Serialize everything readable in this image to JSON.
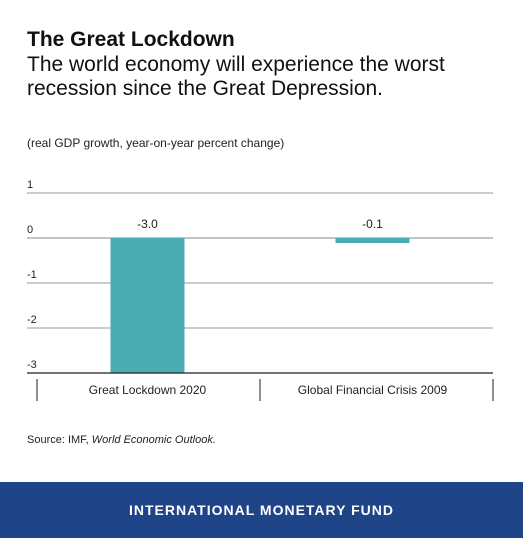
{
  "header": {
    "title": "The Great Lockdown",
    "subtitle": "The world economy will experience the worst recession since the Great Depression."
  },
  "chart_data": {
    "type": "bar",
    "title": "The Great Lockdown",
    "subtitle": "The world economy will experience the worst recession since the Great Depression.",
    "units_note": "(real GDP growth, year-on-year percent change)",
    "categories": [
      "Great Lockdown 2020",
      "Global Financial Crisis 2009"
    ],
    "values": [
      -3.0,
      -0.1
    ],
    "value_labels": [
      "-3.0",
      "-0.1"
    ],
    "y_ticks": [
      1,
      0,
      -1,
      -2,
      -3
    ],
    "y_tick_labels": [
      "1",
      "0",
      "-1",
      "-2",
      "-3"
    ],
    "ylim": [
      -3,
      1
    ],
    "grid": true,
    "legend": "none",
    "bar_color": "#4aacb3"
  },
  "source": {
    "prefix": "Source: IMF, ",
    "publication": "World Economic Outlook."
  },
  "footer": {
    "org_name": "INTERNATIONAL MONETARY FUND",
    "background": "#1f4588"
  }
}
